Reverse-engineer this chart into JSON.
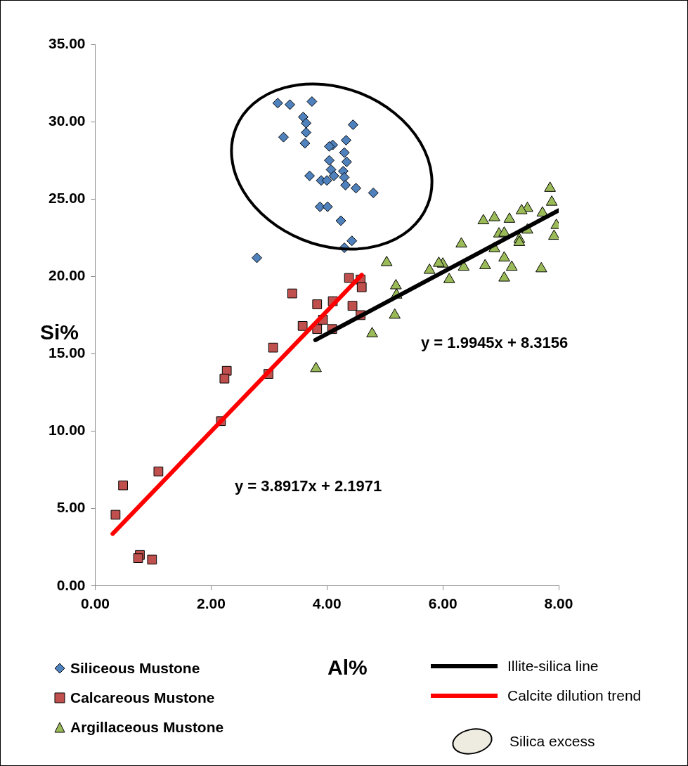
{
  "chart_data": {
    "type": "scatter",
    "xlabel": "Al%",
    "ylabel": "Si%",
    "xlim": [
      0,
      8
    ],
    "xticks": [
      {
        "value": 0,
        "label": "0.00"
      },
      {
        "value": 2,
        "label": "2.00"
      },
      {
        "value": 4,
        "label": "4.00"
      },
      {
        "value": 6,
        "label": "6.00"
      },
      {
        "value": 8,
        "label": "8.00"
      }
    ],
    "ylim": [
      0,
      35
    ],
    "yticks": [
      {
        "value": 0,
        "label": "0.00"
      },
      {
        "value": 5,
        "label": "5.00"
      },
      {
        "value": 10,
        "label": "10.00"
      },
      {
        "value": 15,
        "label": "15.00"
      },
      {
        "value": 20,
        "label": "20.00"
      },
      {
        "value": 25,
        "label": "25.00"
      },
      {
        "value": 30,
        "label": "30.00"
      },
      {
        "value": 35,
        "label": "35.00"
      }
    ],
    "grid": false,
    "legend": "bottom",
    "series": [
      {
        "name": "Siliceous Mustone",
        "color": "#4f81bd",
        "marker": "diamond",
        "x": [
          3.15,
          3.36,
          3.74,
          3.25,
          3.59,
          3.64,
          3.64,
          3.62,
          4.45,
          4.33,
          4.1,
          4.04,
          4.3,
          4.34,
          4.04,
          4.07,
          4.28,
          3.7,
          3.9,
          4.0,
          4.12,
          4.3,
          4.32,
          4.5,
          4.8,
          3.88,
          4.01,
          4.24,
          4.43,
          4.3,
          2.79
        ],
        "values": [
          31.2,
          31.1,
          31.3,
          29.0,
          30.3,
          29.9,
          29.3,
          28.6,
          29.8,
          28.8,
          28.5,
          28.4,
          28.0,
          27.4,
          27.5,
          26.9,
          26.8,
          26.5,
          26.2,
          26.2,
          26.5,
          26.4,
          25.9,
          25.7,
          25.4,
          24.5,
          24.5,
          23.6,
          22.3,
          21.85,
          21.2
        ]
      },
      {
        "name": "Calcareous Mustone",
        "color": "#c0504d",
        "marker": "square",
        "x": [
          4.38,
          4.58,
          4.6,
          3.4,
          3.83,
          4.1,
          4.44,
          4.58,
          3.93,
          3.58,
          3.83,
          4.09,
          3.07,
          2.99,
          2.27,
          2.23,
          2.17,
          1.09,
          0.48,
          0.35,
          0.77,
          0.74,
          0.98
        ],
        "values": [
          19.9,
          19.8,
          19.3,
          18.9,
          18.2,
          18.4,
          18.1,
          17.5,
          17.2,
          16.8,
          16.6,
          16.6,
          15.4,
          13.7,
          13.9,
          13.4,
          10.65,
          7.4,
          6.5,
          4.6,
          2.0,
          1.8,
          1.7
        ]
      },
      {
        "name": "Argillaceous Mustone",
        "color": "#9bbb59",
        "marker": "triangle",
        "x": [
          7.85,
          7.88,
          7.96,
          7.92,
          7.46,
          7.36,
          7.72,
          6.89,
          6.7,
          7.15,
          6.97,
          7.06,
          7.46,
          7.32,
          7.32,
          6.89,
          7.06,
          6.73,
          7.19,
          7.7,
          7.06,
          6.36,
          6.32,
          6.0,
          5.93,
          5.77,
          6.11,
          5.03,
          5.19,
          5.2,
          5.17,
          4.78,
          3.81
        ],
        "values": [
          25.7,
          24.8,
          23.3,
          22.6,
          24.4,
          24.25,
          24.1,
          23.8,
          23.6,
          23.7,
          22.75,
          22.8,
          23.0,
          22.4,
          22.2,
          21.8,
          21.2,
          20.7,
          20.6,
          20.5,
          19.9,
          20.6,
          22.1,
          20.8,
          20.85,
          20.4,
          19.8,
          20.9,
          19.4,
          18.8,
          17.5,
          16.3,
          14.05
        ]
      },
      {
        "name": "Illite-silica  line",
        "type": "line",
        "color": "#000000",
        "marker": "none",
        "x": [
          3.8,
          8.0
        ],
        "values": [
          15.89,
          24.27
        ]
      },
      {
        "name": "Calcite dilution trend",
        "type": "line",
        "color": "#ff0000",
        "marker": "none",
        "x": [
          0.3,
          4.6
        ],
        "values": [
          3.37,
          20.1
        ]
      }
    ],
    "annotations": [
      "y = 1.9945x + 8.3156",
      "y = 3.8917x + 2.1971",
      "Silica excess"
    ]
  }
}
